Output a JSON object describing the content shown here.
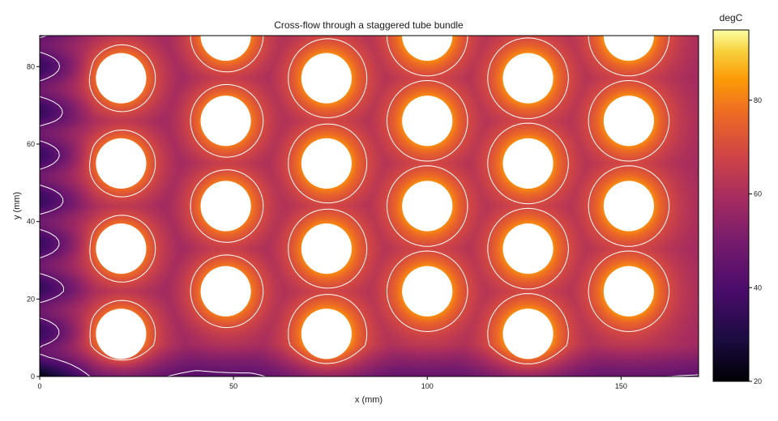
{
  "chart_data": {
    "type": "heatmap",
    "title": "Cross-flow through a staggered tube bundle",
    "xlabel": "x (mm)",
    "ylabel": "y (mm)",
    "xlim": [
      0,
      170
    ],
    "ylim": [
      0,
      88
    ],
    "x_ticks": [
      0,
      50,
      100,
      150
    ],
    "y_ticks": [
      0,
      20,
      40,
      60,
      80
    ],
    "colorbar": {
      "label": "degC",
      "range": [
        20,
        95
      ],
      "ticks": [
        20,
        40,
        60,
        80
      ],
      "colormap": "inferno"
    },
    "tube_diameter_mm": 13,
    "tubes": [
      {
        "x": 21,
        "y": 11
      },
      {
        "x": 21,
        "y": 33
      },
      {
        "x": 21,
        "y": 55
      },
      {
        "x": 21,
        "y": 77
      },
      {
        "x": 48,
        "y": 22
      },
      {
        "x": 48,
        "y": 44
      },
      {
        "x": 48,
        "y": 66
      },
      {
        "x": 48,
        "y": 88
      },
      {
        "x": 74,
        "y": 11
      },
      {
        "x": 74,
        "y": 33
      },
      {
        "x": 74,
        "y": 55
      },
      {
        "x": 74,
        "y": 77
      },
      {
        "x": 100,
        "y": 22
      },
      {
        "x": 100,
        "y": 44
      },
      {
        "x": 100,
        "y": 66
      },
      {
        "x": 100,
        "y": 88
      },
      {
        "x": 126,
        "y": 11
      },
      {
        "x": 126,
        "y": 33
      },
      {
        "x": 126,
        "y": 55
      },
      {
        "x": 126,
        "y": 77
      },
      {
        "x": 152,
        "y": 22
      },
      {
        "x": 152,
        "y": 44
      },
      {
        "x": 152,
        "y": 66
      },
      {
        "x": 152,
        "y": 88
      }
    ],
    "contour_levels_degC": [
      45,
      70
    ],
    "grid": false,
    "legend": "colorbar right"
  }
}
